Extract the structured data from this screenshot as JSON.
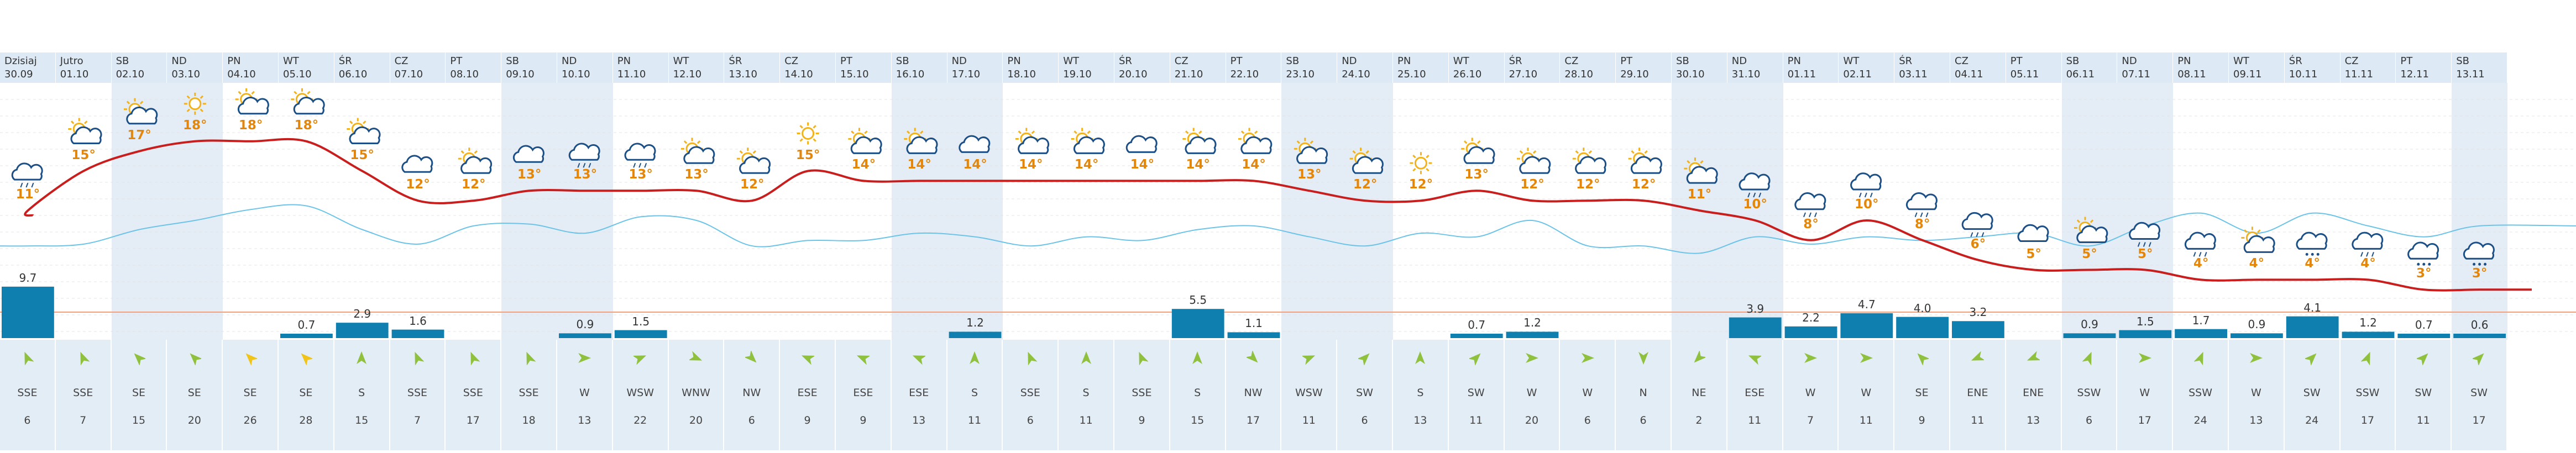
{
  "days": [
    {
      "name": "Dzisiaj",
      "date": "30.09",
      "weekend": false,
      "icon": "rain-cloud-icon",
      "temp": "11°",
      "precip": "9.7",
      "precip_val": 9.7,
      "wind_dir": "SSE",
      "wind_speed": "6"
    },
    {
      "name": "Jutro",
      "date": "01.10",
      "weekend": false,
      "icon": "sun-cloud-icon",
      "temp": "15°",
      "precip": "",
      "precip_val": 0,
      "wind_dir": "SSE",
      "wind_speed": "7"
    },
    {
      "name": "SB",
      "date": "02.10",
      "weekend": true,
      "icon": "sun-cloud-icon",
      "temp": "17°",
      "precip": "",
      "precip_val": 0,
      "wind_dir": "SE",
      "wind_speed": "15"
    },
    {
      "name": "ND",
      "date": "03.10",
      "weekend": true,
      "icon": "sun-icon",
      "temp": "18°",
      "precip": "",
      "precip_val": 0,
      "wind_dir": "SE",
      "wind_speed": "20"
    },
    {
      "name": "PN",
      "date": "04.10",
      "weekend": false,
      "icon": "sun-cloud-icon",
      "temp": "18°",
      "precip": "",
      "precip_val": 0,
      "wind_dir": "SE",
      "wind_speed": "26"
    },
    {
      "name": "WT",
      "date": "05.10",
      "weekend": false,
      "icon": "sun-cloud-icon",
      "temp": "18°",
      "precip": "0.7",
      "precip_val": 0.7,
      "wind_dir": "SE",
      "wind_speed": "28"
    },
    {
      "name": "ŚR",
      "date": "06.10",
      "weekend": false,
      "icon": "sun-cloud-icon",
      "temp": "15°",
      "precip": "2.9",
      "precip_val": 2.9,
      "wind_dir": "S",
      "wind_speed": "15"
    },
    {
      "name": "CZ",
      "date": "07.10",
      "weekend": false,
      "icon": "cloud-icon",
      "temp": "12°",
      "precip": "1.6",
      "precip_val": 1.6,
      "wind_dir": "SSE",
      "wind_speed": "7"
    },
    {
      "name": "PT",
      "date": "08.10",
      "weekend": false,
      "icon": "sun-cloud-icon",
      "temp": "12°",
      "precip": "",
      "precip_val": 0,
      "wind_dir": "SSE",
      "wind_speed": "17"
    },
    {
      "name": "SB",
      "date": "09.10",
      "weekend": true,
      "icon": "cloud-icon",
      "temp": "13°",
      "precip": "",
      "precip_val": 0,
      "wind_dir": "SSE",
      "wind_speed": "18"
    },
    {
      "name": "ND",
      "date": "10.10",
      "weekend": true,
      "icon": "rain-cloud-icon",
      "temp": "13°",
      "precip": "0.9",
      "precip_val": 0.9,
      "wind_dir": "W",
      "wind_speed": "13"
    },
    {
      "name": "PN",
      "date": "11.10",
      "weekend": false,
      "icon": "rain-cloud-icon",
      "temp": "13°",
      "precip": "1.5",
      "precip_val": 1.5,
      "wind_dir": "WSW",
      "wind_speed": "22"
    },
    {
      "name": "WT",
      "date": "12.10",
      "weekend": false,
      "icon": "sun-cloud-icon",
      "temp": "13°",
      "precip": "",
      "precip_val": 0,
      "wind_dir": "WNW",
      "wind_speed": "20"
    },
    {
      "name": "ŚR",
      "date": "13.10",
      "weekend": false,
      "icon": "sun-cloud-icon",
      "temp": "12°",
      "precip": "",
      "precip_val": 0,
      "wind_dir": "NW",
      "wind_speed": "6"
    },
    {
      "name": "CZ",
      "date": "14.10",
      "weekend": false,
      "icon": "sun-icon",
      "temp": "15°",
      "precip": "",
      "precip_val": 0,
      "wind_dir": "ESE",
      "wind_speed": "9"
    },
    {
      "name": "PT",
      "date": "15.10",
      "weekend": false,
      "icon": "sun-cloud-icon",
      "temp": "14°",
      "precip": "",
      "precip_val": 0,
      "wind_dir": "ESE",
      "wind_speed": "9"
    },
    {
      "name": "SB",
      "date": "16.10",
      "weekend": true,
      "icon": "sun-cloud-icon",
      "temp": "14°",
      "precip": "",
      "precip_val": 0,
      "wind_dir": "ESE",
      "wind_speed": "13"
    },
    {
      "name": "ND",
      "date": "17.10",
      "weekend": true,
      "icon": "cloud-icon",
      "temp": "14°",
      "precip": "1.2",
      "precip_val": 1.2,
      "wind_dir": "S",
      "wind_speed": "11"
    },
    {
      "name": "PN",
      "date": "18.10",
      "weekend": false,
      "icon": "sun-cloud-icon",
      "temp": "14°",
      "precip": "",
      "precip_val": 0,
      "wind_dir": "SSE",
      "wind_speed": "6"
    },
    {
      "name": "WT",
      "date": "19.10",
      "weekend": false,
      "icon": "sun-cloud-icon",
      "temp": "14°",
      "precip": "",
      "precip_val": 0,
      "wind_dir": "S",
      "wind_speed": "11"
    },
    {
      "name": "ŚR",
      "date": "20.10",
      "weekend": false,
      "icon": "cloud-icon",
      "temp": "14°",
      "precip": "",
      "precip_val": 0,
      "wind_dir": "SSE",
      "wind_speed": "9"
    },
    {
      "name": "CZ",
      "date": "21.10",
      "weekend": false,
      "icon": "sun-cloud-icon",
      "temp": "14°",
      "precip": "5.5",
      "precip_val": 5.5,
      "wind_dir": "S",
      "wind_speed": "15"
    },
    {
      "name": "PT",
      "date": "22.10",
      "weekend": false,
      "icon": "sun-cloud-icon",
      "temp": "14°",
      "precip": "1.1",
      "precip_val": 1.1,
      "wind_dir": "NW",
      "wind_speed": "17"
    },
    {
      "name": "SB",
      "date": "23.10",
      "weekend": true,
      "icon": "sun-cloud-icon",
      "temp": "13°",
      "precip": "",
      "precip_val": 0,
      "wind_dir": "WSW",
      "wind_speed": "11"
    },
    {
      "name": "ND",
      "date": "24.10",
      "weekend": true,
      "icon": "sun-cloud-icon",
      "temp": "12°",
      "precip": "",
      "precip_val": 0,
      "wind_dir": "SW",
      "wind_speed": "6"
    },
    {
      "name": "PN",
      "date": "25.10",
      "weekend": false,
      "icon": "sun-icon",
      "temp": "12°",
      "precip": "",
      "precip_val": 0,
      "wind_dir": "S",
      "wind_speed": "13"
    },
    {
      "name": "WT",
      "date": "26.10",
      "weekend": false,
      "icon": "sun-cloud-icon",
      "temp": "13°",
      "precip": "0.7",
      "precip_val": 0.7,
      "wind_dir": "SW",
      "wind_speed": "11"
    },
    {
      "name": "ŚR",
      "date": "27.10",
      "weekend": false,
      "icon": "sun-cloud-icon",
      "temp": "12°",
      "precip": "1.2",
      "precip_val": 1.2,
      "wind_dir": "W",
      "wind_speed": "20"
    },
    {
      "name": "CZ",
      "date": "28.10",
      "weekend": false,
      "icon": "sun-cloud-icon",
      "temp": "12°",
      "precip": "",
      "precip_val": 0,
      "wind_dir": "W",
      "wind_speed": "6"
    },
    {
      "name": "PT",
      "date": "29.10",
      "weekend": false,
      "icon": "sun-cloud-icon",
      "temp": "12°",
      "precip": "",
      "precip_val": 0,
      "wind_dir": "N",
      "wind_speed": "6"
    },
    {
      "name": "SB",
      "date": "30.10",
      "weekend": true,
      "icon": "sun-cloud-icon",
      "temp": "11°",
      "precip": "",
      "precip_val": 0,
      "wind_dir": "NE",
      "wind_speed": "2"
    },
    {
      "name": "ND",
      "date": "31.10",
      "weekend": true,
      "icon": "rain-cloud-icon",
      "temp": "10°",
      "precip": "3.9",
      "precip_val": 3.9,
      "wind_dir": "ESE",
      "wind_speed": "11"
    },
    {
      "name": "PN",
      "date": "01.11",
      "weekend": false,
      "icon": "rain-cloud-icon",
      "temp": "8°",
      "precip": "2.2",
      "precip_val": 2.2,
      "wind_dir": "W",
      "wind_speed": "7"
    },
    {
      "name": "WT",
      "date": "02.11",
      "weekend": false,
      "icon": "rain-cloud-icon",
      "temp": "10°",
      "precip": "4.7",
      "precip_val": 4.7,
      "wind_dir": "W",
      "wind_speed": "11"
    },
    {
      "name": "ŚR",
      "date": "03.11",
      "weekend": false,
      "icon": "rain-cloud-icon",
      "temp": "8°",
      "precip": "4.0",
      "precip_val": 4.0,
      "wind_dir": "SE",
      "wind_speed": "9"
    },
    {
      "name": "CZ",
      "date": "04.11",
      "weekend": false,
      "icon": "rain-cloud-icon",
      "temp": "6°",
      "precip": "3.2",
      "precip_val": 3.2,
      "wind_dir": "ENE",
      "wind_speed": "11"
    },
    {
      "name": "PT",
      "date": "05.11",
      "weekend": false,
      "icon": "cloud-icon",
      "temp": "5°",
      "precip": "",
      "precip_val": 0,
      "wind_dir": "ENE",
      "wind_speed": "13"
    },
    {
      "name": "SB",
      "date": "06.11",
      "weekend": true,
      "icon": "sun-cloud-icon",
      "temp": "5°",
      "precip": "0.9",
      "precip_val": 0.9,
      "wind_dir": "SSW",
      "wind_speed": "6"
    },
    {
      "name": "ND",
      "date": "07.11",
      "weekend": true,
      "icon": "rain-cloud-icon",
      "temp": "5°",
      "precip": "1.5",
      "precip_val": 1.5,
      "wind_dir": "W",
      "wind_speed": "17"
    },
    {
      "name": "PN",
      "date": "08.11",
      "weekend": false,
      "icon": "rain-cloud-icon",
      "temp": "4°",
      "precip": "1.7",
      "precip_val": 1.7,
      "wind_dir": "SSW",
      "wind_speed": "24"
    },
    {
      "name": "WT",
      "date": "09.11",
      "weekend": false,
      "icon": "sun-cloud-icon",
      "temp": "4°",
      "precip": "0.9",
      "precip_val": 0.9,
      "wind_dir": "W",
      "wind_speed": "13"
    },
    {
      "name": "ŚR",
      "date": "10.11",
      "weekend": false,
      "icon": "snow-cloud-icon",
      "temp": "4°",
      "precip": "4.1",
      "precip_val": 4.1,
      "wind_dir": "SW",
      "wind_speed": "24"
    },
    {
      "name": "CZ",
      "date": "11.11",
      "weekend": false,
      "icon": "rain-cloud-icon",
      "temp": "4°",
      "precip": "1.2",
      "precip_val": 1.2,
      "wind_dir": "SSW",
      "wind_speed": "17"
    },
    {
      "name": "PT",
      "date": "12.11",
      "weekend": false,
      "icon": "snow-cloud-icon",
      "temp": "3°",
      "precip": "0.7",
      "precip_val": 0.7,
      "wind_dir": "SW",
      "wind_speed": "11"
    },
    {
      "name": "SB",
      "date": "13.11",
      "weekend": true,
      "icon": "snow-cloud-icon",
      "temp": "3°",
      "precip": "0.6",
      "precip_val": 0.6,
      "wind_dir": "SW",
      "wind_speed": "17"
    }
  ],
  "chart_data": {
    "type": "line",
    "categories": [
      "30.09",
      "01.10",
      "02.10",
      "03.10",
      "04.10",
      "05.10",
      "06.10",
      "07.10",
      "08.10",
      "09.10",
      "10.10",
      "11.10",
      "12.10",
      "13.10",
      "14.10",
      "15.10",
      "16.10",
      "17.10",
      "18.10",
      "19.10",
      "20.10",
      "21.10",
      "22.10",
      "23.10",
      "24.10",
      "25.10",
      "26.10",
      "27.10",
      "28.10",
      "29.10",
      "30.10",
      "31.10",
      "01.11",
      "02.11",
      "03.11",
      "04.11",
      "05.11",
      "06.11",
      "07.11",
      "08.11",
      "09.11",
      "10.11",
      "11.11",
      "12.11",
      "13.11"
    ],
    "series": [
      {
        "values": [
          11,
          15,
          17,
          18,
          18,
          18,
          15,
          12,
          12,
          13,
          13,
          13,
          13,
          12,
          15,
          14,
          14,
          14,
          14,
          14,
          14,
          14,
          14,
          13,
          12,
          12,
          13,
          12,
          12,
          12,
          11,
          10,
          8,
          10,
          8,
          6,
          5,
          5,
          5,
          4,
          4,
          4,
          4,
          3,
          3
        ]
      },
      {
        "values": [
          9.7,
          0,
          0,
          0,
          0,
          0.7,
          2.9,
          1.6,
          0,
          0,
          0.9,
          1.5,
          0,
          0,
          0,
          0,
          0,
          1.2,
          0,
          0,
          0,
          5.5,
          1.1,
          0,
          0,
          0,
          0.7,
          1.2,
          0,
          0,
          0,
          3.9,
          2.2,
          4.7,
          4.0,
          3.2,
          0,
          0.9,
          1.5,
          1.7,
          0.9,
          4.1,
          1.2,
          0.7,
          0.6
        ]
      },
      {
        "values": [
          6,
          7,
          15,
          20,
          26,
          28,
          15,
          7,
          17,
          18,
          13,
          22,
          20,
          6,
          9,
          9,
          13,
          11,
          6,
          11,
          9,
          15,
          17,
          11,
          6,
          13,
          11,
          20,
          6,
          6,
          2,
          11,
          7,
          11,
          9,
          11,
          13,
          6,
          17,
          24,
          13,
          24,
          17,
          11,
          17
        ]
      }
    ],
    "colors": {
      "temp_line": "#c81e1e",
      "wind_line": "#6cc3e8",
      "precip_bar": "#0e7fae",
      "precip_ref": "#f2a07a",
      "weekend_bg": "#dfeaf5",
      "header_bg": "#dde9f4",
      "wind_row_bg": "#e3edf6",
      "arrow_green": "#8fc13e",
      "arrow_yellow": "#f0c419",
      "temp_label": "#e3860a"
    }
  }
}
